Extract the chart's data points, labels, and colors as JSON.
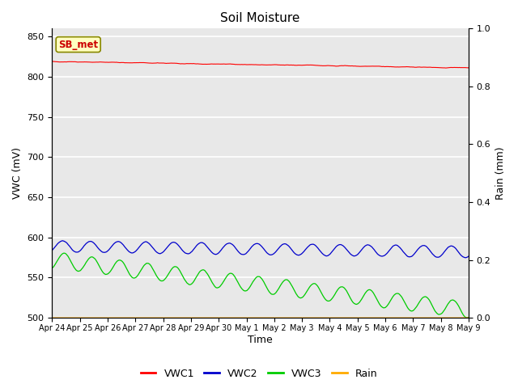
{
  "title": "Soil Moisture",
  "xlabel": "Time",
  "ylabel_left": "VWC (mV)",
  "ylabel_right": "Rain (mm)",
  "ylim_left": [
    500,
    860
  ],
  "ylim_right": [
    0.0,
    1.0
  ],
  "yticks_left": [
    500,
    550,
    600,
    650,
    700,
    750,
    800,
    850
  ],
  "yticks_right": [
    0.0,
    0.2,
    0.4,
    0.6,
    0.8,
    1.0
  ],
  "x_tick_labels": [
    "Apr 24",
    "Apr 25",
    "Apr 26",
    "Apr 27",
    "Apr 28",
    "Apr 29",
    "Apr 30",
    "May 1",
    "May 2",
    "May 3",
    "May 4",
    "May 5",
    "May 6",
    "May 7",
    "May 8",
    "May 9"
  ],
  "n_points": 1440,
  "colors": {
    "VWC1": "#ff0000",
    "VWC2": "#0000cc",
    "VWC3": "#00cc00",
    "Rain": "#ffaa00"
  },
  "annotation_text": "SB_met",
  "annotation_color": "#cc0000",
  "annotation_bg": "#ffffc0",
  "background_color": "#ffffff",
  "axes_bg": "#e8e8e8",
  "grid_color": "#ffffff"
}
